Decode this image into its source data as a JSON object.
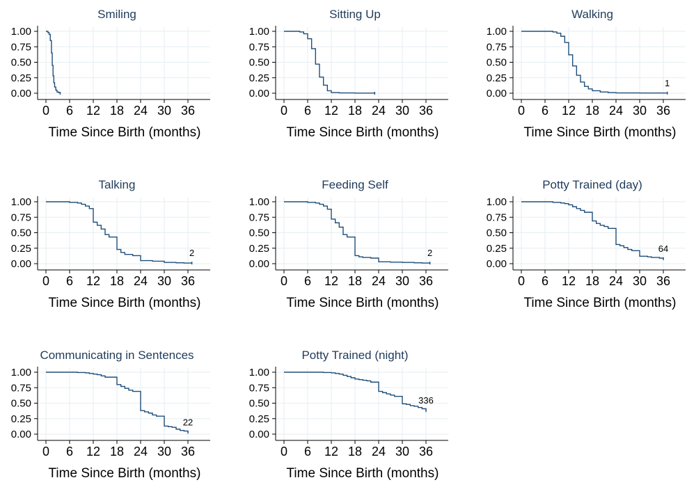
{
  "chart_data": [
    {
      "type": "line",
      "title": "Smiling",
      "xlabel": "Time Since Birth (months)",
      "ylabel": "",
      "xlim": [
        0,
        36
      ],
      "ylim": [
        0,
        1
      ],
      "xticks": [
        "0",
        "6",
        "12",
        "18",
        "24",
        "30",
        "36"
      ],
      "yticks": [
        "0.00",
        "0.25",
        "0.50",
        "0.75",
        "1.00"
      ],
      "grid": true,
      "step": true,
      "x": [
        0,
        0.5,
        0.8,
        1.1,
        1.4,
        1.6,
        1.8,
        2.0,
        2.2,
        2.5,
        2.8,
        3.2,
        3.6
      ],
      "y": [
        1.0,
        0.98,
        0.95,
        0.85,
        0.65,
        0.45,
        0.28,
        0.17,
        0.1,
        0.05,
        0.02,
        0.01,
        0.0
      ],
      "annotation": ""
    },
    {
      "type": "line",
      "title": "Sitting Up",
      "xlabel": "Time Since Birth (months)",
      "ylabel": "",
      "xlim": [
        0,
        36
      ],
      "ylim": [
        0,
        1
      ],
      "xticks": [
        "0",
        "6",
        "12",
        "18",
        "24",
        "30",
        "36"
      ],
      "yticks": [
        "0.00",
        "0.25",
        "0.50",
        "0.75",
        "1.00"
      ],
      "grid": true,
      "step": true,
      "x": [
        0,
        4,
        5,
        6,
        7,
        8,
        9,
        10,
        11,
        12,
        14,
        18,
        23
      ],
      "y": [
        1.0,
        0.99,
        0.96,
        0.88,
        0.72,
        0.47,
        0.26,
        0.13,
        0.04,
        0.01,
        0.005,
        0.002,
        0.0
      ],
      "annotation": ""
    },
    {
      "type": "line",
      "title": "Walking",
      "xlabel": "Time Since Birth (months)",
      "ylabel": "",
      "xlim": [
        0,
        36
      ],
      "ylim": [
        0,
        1
      ],
      "xticks": [
        "0",
        "6",
        "12",
        "18",
        "24",
        "30",
        "36"
      ],
      "yticks": [
        "0.00",
        "0.25",
        "0.50",
        "0.75",
        "1.00"
      ],
      "grid": true,
      "step": true,
      "x": [
        0,
        8,
        9,
        10,
        11,
        12,
        13,
        14,
        15,
        16,
        17,
        18,
        20,
        22,
        24,
        30,
        37
      ],
      "y": [
        1.0,
        0.99,
        0.97,
        0.92,
        0.82,
        0.62,
        0.44,
        0.29,
        0.18,
        0.11,
        0.07,
        0.04,
        0.02,
        0.01,
        0.005,
        0.003,
        0.002
      ],
      "annotation": "1"
    },
    {
      "type": "line",
      "title": "Talking",
      "xlabel": "Time Since Birth (months)",
      "ylabel": "",
      "xlim": [
        0,
        36
      ],
      "ylim": [
        0,
        1
      ],
      "xticks": [
        "0",
        "6",
        "12",
        "18",
        "24",
        "30",
        "36"
      ],
      "yticks": [
        "0.00",
        "0.25",
        "0.50",
        "0.75",
        "1.00"
      ],
      "grid": true,
      "step": true,
      "x": [
        0,
        6,
        8,
        9,
        10,
        11,
        12,
        13,
        14,
        15,
        16,
        18,
        19,
        20,
        22,
        24,
        27,
        30,
        33,
        35,
        37
      ],
      "y": [
        1.0,
        0.99,
        0.98,
        0.96,
        0.93,
        0.89,
        0.67,
        0.62,
        0.56,
        0.47,
        0.43,
        0.23,
        0.18,
        0.15,
        0.13,
        0.05,
        0.04,
        0.02,
        0.015,
        0.01,
        0.01
      ],
      "annotation": "2"
    },
    {
      "type": "line",
      "title": "Feeding Self",
      "xlabel": "Time Since Birth (months)",
      "ylabel": "",
      "xlim": [
        0,
        36
      ],
      "ylim": [
        0,
        1
      ],
      "xticks": [
        "0",
        "6",
        "12",
        "18",
        "24",
        "30",
        "36"
      ],
      "yticks": [
        "0.00",
        "0.25",
        "0.50",
        "0.75",
        "1.00"
      ],
      "grid": true,
      "step": true,
      "x": [
        0,
        6,
        8,
        9,
        10,
        11,
        12,
        13,
        14,
        15,
        16,
        18,
        19,
        20,
        22,
        24,
        27,
        30,
        33,
        35,
        37
      ],
      "y": [
        1.0,
        0.99,
        0.98,
        0.96,
        0.93,
        0.88,
        0.72,
        0.66,
        0.59,
        0.47,
        0.43,
        0.13,
        0.11,
        0.1,
        0.09,
        0.03,
        0.025,
        0.02,
        0.015,
        0.01,
        0.01
      ],
      "annotation": "2"
    },
    {
      "type": "line",
      "title": "Potty Trained (day)",
      "xlabel": "Time Since Birth (months)",
      "ylabel": "",
      "xlim": [
        0,
        36
      ],
      "ylim": [
        0,
        1
      ],
      "xticks": [
        "0",
        "6",
        "12",
        "18",
        "24",
        "30",
        "36"
      ],
      "yticks": [
        "0.00",
        "0.25",
        "0.50",
        "0.75",
        "1.00"
      ],
      "grid": true,
      "step": true,
      "x": [
        0,
        8,
        10,
        11,
        12,
        13,
        14,
        15,
        16,
        18,
        19,
        20,
        21,
        22,
        24,
        25,
        26,
        27,
        28,
        30,
        32,
        33,
        35,
        36
      ],
      "y": [
        1.0,
        0.99,
        0.98,
        0.97,
        0.95,
        0.92,
        0.89,
        0.86,
        0.83,
        0.69,
        0.65,
        0.62,
        0.6,
        0.57,
        0.31,
        0.29,
        0.26,
        0.23,
        0.21,
        0.12,
        0.11,
        0.1,
        0.09,
        0.08
      ],
      "annotation": "64"
    },
    {
      "type": "line",
      "title": "Communicating in Sentences",
      "xlabel": "Time Since Birth (months)",
      "ylabel": "",
      "xlim": [
        0,
        36
      ],
      "ylim": [
        0,
        1
      ],
      "xticks": [
        "0",
        "6",
        "12",
        "18",
        "24",
        "30",
        "36"
      ],
      "yticks": [
        "0.00",
        "0.25",
        "0.50",
        "0.75",
        "1.00"
      ],
      "grid": true,
      "step": true,
      "x": [
        0,
        8,
        10,
        11,
        12,
        13,
        14,
        15,
        18,
        19,
        20,
        21,
        22,
        24,
        25,
        26,
        27,
        28,
        30,
        31,
        32,
        33,
        34,
        35,
        36
      ],
      "y": [
        1.0,
        0.995,
        0.99,
        0.98,
        0.97,
        0.96,
        0.94,
        0.92,
        0.8,
        0.77,
        0.74,
        0.71,
        0.69,
        0.38,
        0.36,
        0.34,
        0.31,
        0.29,
        0.13,
        0.12,
        0.11,
        0.08,
        0.06,
        0.05,
        0.03
      ],
      "annotation": "22"
    },
    {
      "type": "line",
      "title": "Potty Trained (night)",
      "xlabel": "Time Since Birth (months)",
      "ylabel": "",
      "xlim": [
        0,
        36
      ],
      "ylim": [
        0,
        1
      ],
      "xticks": [
        "0",
        "6",
        "12",
        "18",
        "24",
        "30",
        "36"
      ],
      "yticks": [
        "0.00",
        "0.25",
        "0.50",
        "0.75",
        "1.00"
      ],
      "grid": true,
      "step": true,
      "x": [
        0,
        10,
        12,
        13,
        14,
        15,
        16,
        17,
        18,
        19,
        20,
        21,
        22,
        24,
        25,
        26,
        27,
        28,
        30,
        31,
        32,
        33,
        34,
        35,
        36
      ],
      "y": [
        1.0,
        0.995,
        0.99,
        0.98,
        0.97,
        0.95,
        0.93,
        0.91,
        0.89,
        0.88,
        0.87,
        0.86,
        0.84,
        0.69,
        0.67,
        0.65,
        0.63,
        0.61,
        0.49,
        0.48,
        0.46,
        0.45,
        0.43,
        0.41,
        0.38
      ],
      "annotation": "336"
    }
  ]
}
